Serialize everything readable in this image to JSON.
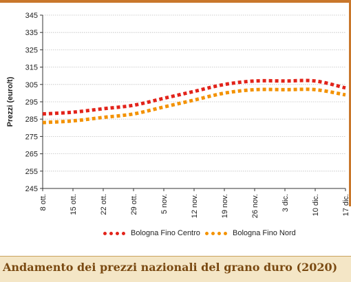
{
  "colors": {
    "accent_rule": "#c9772b",
    "centro": "#e2231a",
    "nord": "#f39200",
    "grid": "#bfbfbf",
    "footer_bg": "#f4e6c6",
    "footer_text": "#7a4a12"
  },
  "footer": {
    "title": "Andamento dei prezzi nazionali del grano duro (2020)"
  },
  "chart_data": {
    "type": "line",
    "title": "",
    "xlabel": "",
    "ylabel": "Prezzi (euro/t)",
    "ylim": [
      245,
      345
    ],
    "yticks": [
      245,
      255,
      265,
      275,
      285,
      295,
      305,
      315,
      325,
      335,
      345
    ],
    "x": [
      "8 ott.",
      "15 ott.",
      "22 ott.",
      "29 ott.",
      "5 nov.",
      "12 nov.",
      "19 nov.",
      "26 nov.",
      "3 dic.",
      "10 dic.",
      "17 dic."
    ],
    "grid": "horizontal",
    "legend_position": "bottom",
    "series": [
      {
        "name": "Bologna Fino Centro",
        "color": "#e2231a",
        "values": [
          288,
          289,
          291,
          293,
          297,
          301,
          305,
          307,
          307,
          307,
          303
        ]
      },
      {
        "name": "Bologna Fino Nord",
        "color": "#f39200",
        "values": [
          283,
          284,
          286,
          288,
          292,
          296,
          300,
          302,
          302,
          302,
          299
        ]
      }
    ]
  }
}
